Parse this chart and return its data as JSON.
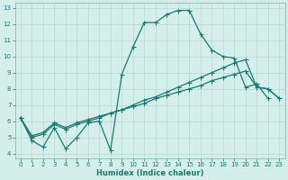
{
  "xlabel": "Humidex (Indice chaleur)",
  "bg_color": "#d4eeea",
  "grid_color": "#b8d8d4",
  "line_color": "#1a7a6e",
  "xlim": [
    -0.5,
    23.5
  ],
  "ylim": [
    3.7,
    13.3
  ],
  "xticks": [
    0,
    1,
    2,
    3,
    4,
    5,
    6,
    7,
    8,
    9,
    10,
    11,
    12,
    13,
    14,
    15,
    16,
    17,
    18,
    19,
    20,
    21,
    22,
    23
  ],
  "yticks": [
    4,
    5,
    6,
    7,
    8,
    9,
    10,
    11,
    12,
    13
  ],
  "line1_x": [
    0,
    1,
    2,
    3,
    4,
    5,
    6,
    7,
    8,
    9,
    10,
    11,
    12,
    13,
    14,
    15,
    16,
    17,
    18,
    19,
    20,
    21,
    22
  ],
  "line1_y": [
    6.2,
    4.8,
    4.4,
    5.6,
    4.3,
    5.0,
    5.9,
    6.0,
    4.2,
    8.9,
    10.6,
    12.1,
    12.1,
    12.6,
    12.85,
    12.85,
    11.4,
    10.4,
    10.0,
    9.9,
    8.1,
    8.3,
    7.4
  ],
  "line2_x": [
    0,
    1,
    2,
    3,
    4,
    5,
    6,
    7,
    8,
    9,
    10,
    11,
    12,
    13,
    14,
    15,
    16,
    17,
    18,
    19,
    20,
    21,
    22,
    23
  ],
  "line2_y": [
    6.2,
    5.0,
    5.2,
    5.8,
    5.5,
    5.8,
    6.0,
    6.2,
    6.5,
    6.7,
    7.0,
    7.3,
    7.5,
    7.8,
    8.1,
    8.4,
    8.7,
    9.0,
    9.3,
    9.6,
    9.8,
    8.1,
    8.0,
    7.4
  ],
  "line3_x": [
    0,
    1,
    2,
    3,
    4,
    5,
    6,
    7,
    8,
    9,
    10,
    11,
    12,
    13,
    14,
    15,
    16,
    17,
    18,
    19,
    20,
    21,
    22,
    23
  ],
  "line3_y": [
    6.2,
    5.1,
    5.3,
    5.9,
    5.6,
    5.9,
    6.1,
    6.3,
    6.5,
    6.7,
    6.9,
    7.1,
    7.4,
    7.6,
    7.8,
    8.0,
    8.2,
    8.5,
    8.7,
    8.9,
    9.1,
    8.1,
    8.0,
    7.4
  ]
}
